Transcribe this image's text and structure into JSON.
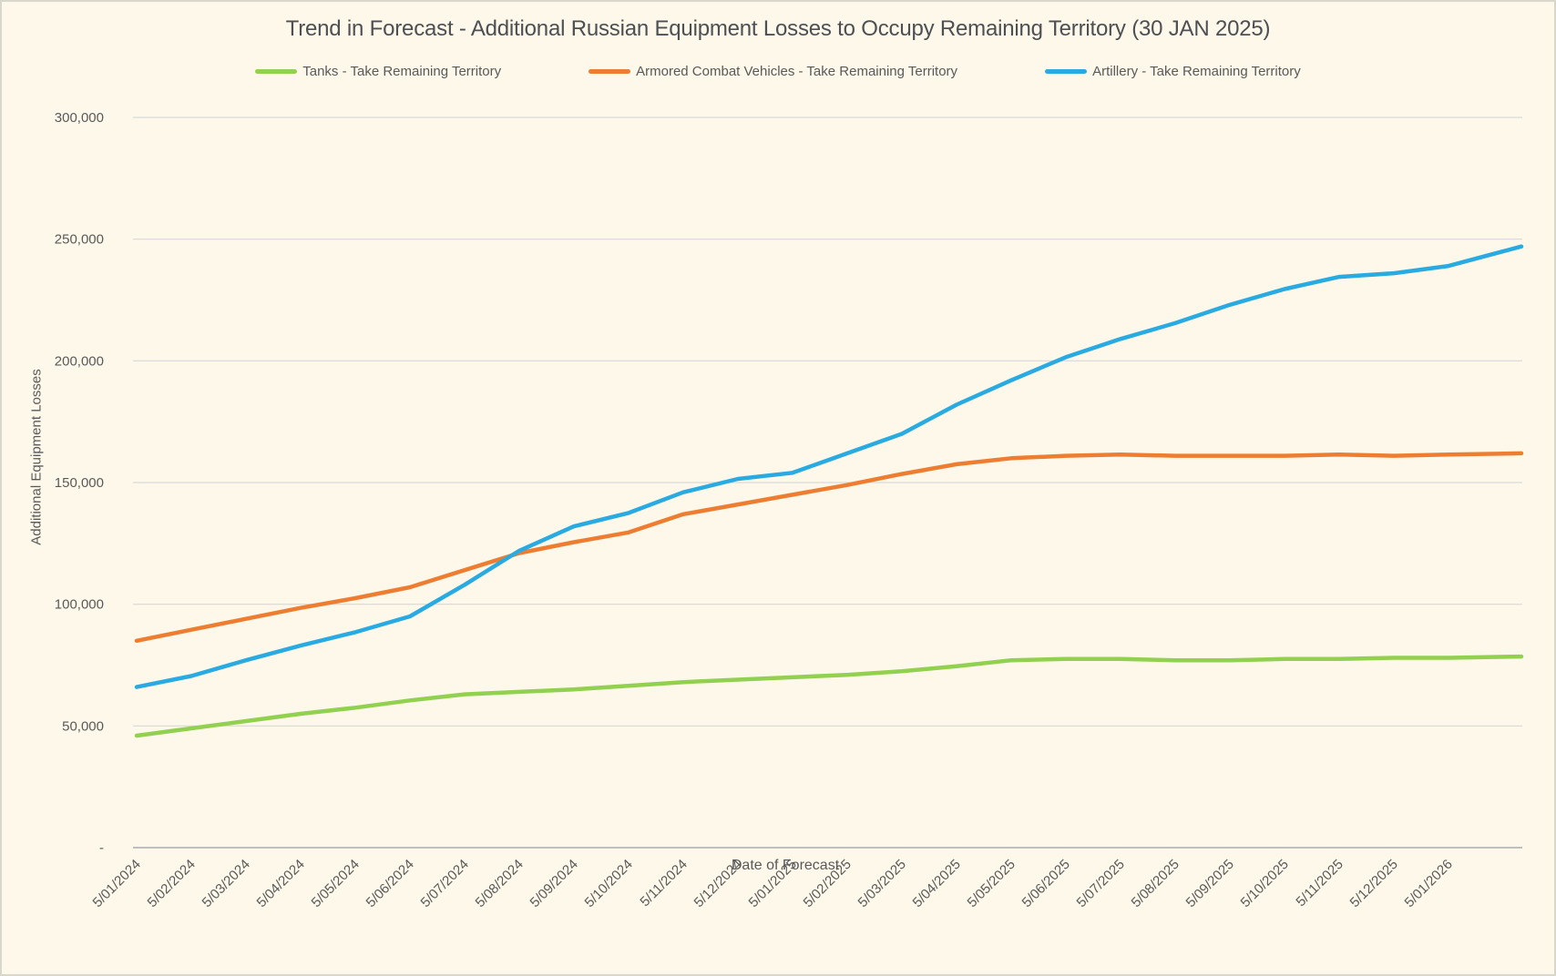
{
  "window": {
    "background_color": "#FDF8EA",
    "grid_color": "#D9D9D9",
    "axis_line_color": "#BFBFBF",
    "text_color": "#595959"
  },
  "chart_data": {
    "type": "line",
    "title": "Trend in Forecast - Additional Russian Equipment Losses to Occupy Remaining Territory (30 JAN 2025)",
    "xlabel": "Date of Forecast",
    "ylabel": "Additional Equipment Losses",
    "grid": "horizontal",
    "legend_position": "top",
    "y_axis": {
      "min": 0,
      "max": 300000,
      "step": 50000,
      "tick_labels": [
        "-",
        "50,000",
        "100,000",
        "150,000",
        "200,000",
        "250,000",
        "300,000"
      ]
    },
    "categories": [
      "5/01/2024",
      "5/02/2024",
      "5/03/2024",
      "5/04/2024",
      "5/05/2024",
      "5/06/2024",
      "5/07/2024",
      "5/08/2024",
      "5/09/2024",
      "5/10/2024",
      "5/11/2024",
      "5/12/2024",
      "5/01/2025",
      "5/02/2025",
      "5/03/2025",
      "5/04/2025",
      "5/05/2025",
      "5/06/2025",
      "5/07/2025",
      "5/08/2025",
      "5/09/2025",
      "5/10/2025",
      "5/11/2025",
      "5/12/2025",
      "5/01/2026"
    ],
    "series": [
      {
        "name": "Tanks - Take Remaining Territory",
        "color": "#92D050",
        "values": [
          46000,
          49000,
          52000,
          55000,
          57500,
          60500,
          63000,
          64000,
          65000,
          66500,
          68000,
          69000,
          70000,
          71000,
          72500,
          74500,
          77000,
          77500,
          77500,
          77000,
          77000,
          77500,
          77500,
          78000,
          78000
        ],
        "end_value": 78500
      },
      {
        "name": "Armored Combat Vehicles - Take Remaining Territory",
        "color": "#ED7D31",
        "values": [
          85000,
          89500,
          94000,
          98500,
          102500,
          107000,
          114000,
          121000,
          125500,
          129500,
          137000,
          141000,
          145000,
          149000,
          153500,
          157500,
          160000,
          161000,
          161500,
          161000,
          161000,
          161000,
          161500,
          161000,
          161500
        ],
        "end_value": 162000
      },
      {
        "name": "Artillery - Take Remaining Territory",
        "color": "#29ABE2",
        "values": [
          66000,
          70500,
          77000,
          83000,
          88500,
          95000,
          108000,
          122000,
          132000,
          137500,
          146000,
          151500,
          154000,
          162000,
          170000,
          182000,
          192000,
          201500,
          209000,
          215500,
          223000,
          229500,
          234500,
          236000,
          239000
        ],
        "end_value": 247000
      }
    ]
  }
}
